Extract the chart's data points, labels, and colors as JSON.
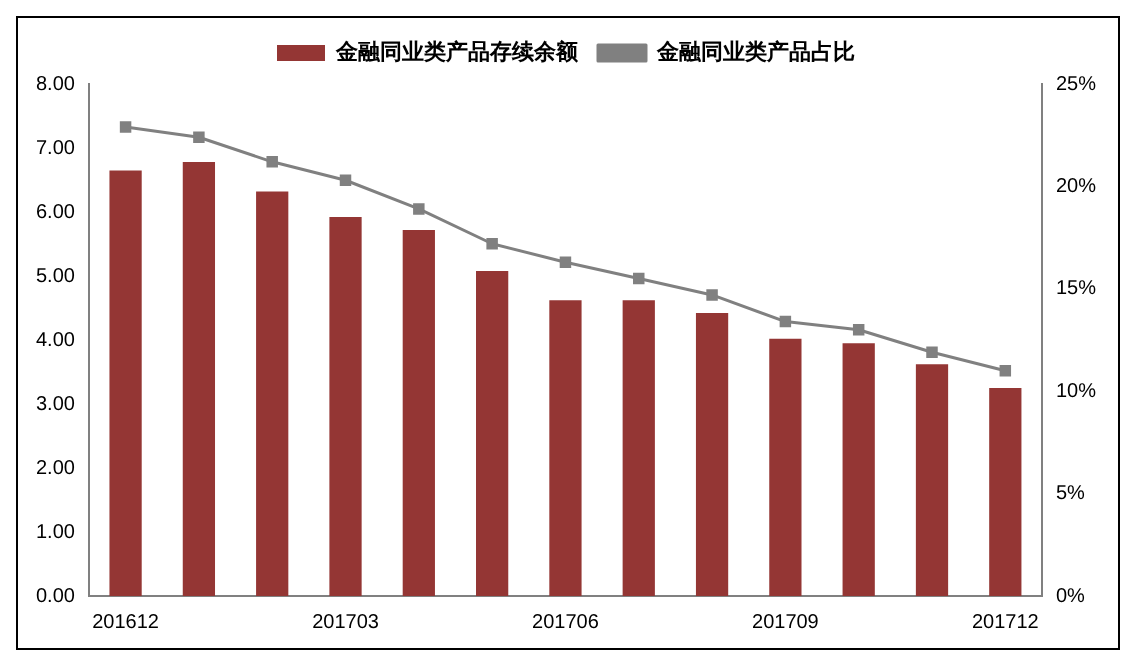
{
  "chart_data": {
    "type": "bar",
    "categories": [
      "201612",
      null,
      null,
      "201703",
      null,
      null,
      "201706",
      null,
      null,
      "201709",
      null,
      null,
      "201712"
    ],
    "series": [
      {
        "name": "金融同业类产品存续余额",
        "color": "#943634",
        "values": [
          6.65,
          6.78,
          6.32,
          5.92,
          5.72,
          5.08,
          4.62,
          4.62,
          4.42,
          4.02,
          3.95,
          3.62,
          3.25
        ]
      },
      {
        "name": "金融同业类产品占比",
        "type": "line",
        "axis": "y2",
        "color": "#808080",
        "marker": "square",
        "values": [
          22.9,
          22.4,
          21.2,
          20.3,
          18.9,
          17.2,
          16.3,
          15.5,
          14.7,
          13.4,
          13.0,
          11.9,
          11.0
        ]
      }
    ],
    "ylim": [
      0,
      8
    ],
    "yticks": [
      {
        "value": 0,
        "label": "0.00"
      },
      {
        "value": 1,
        "label": "1.00"
      },
      {
        "value": 2,
        "label": "2.00"
      },
      {
        "value": 3,
        "label": "3.00"
      },
      {
        "value": 4,
        "label": "4.00"
      },
      {
        "value": 5,
        "label": "5.00"
      },
      {
        "value": 6,
        "label": "6.00"
      },
      {
        "value": 7,
        "label": "7.00"
      },
      {
        "value": 8,
        "label": "8.00"
      }
    ],
    "y2lim": [
      0,
      25
    ],
    "y2ticks": [
      {
        "value": 0,
        "label": "0%"
      },
      {
        "value": 5,
        "label": "5%"
      },
      {
        "value": 10,
        "label": "10%"
      },
      {
        "value": 15,
        "label": "15%"
      },
      {
        "value": 20,
        "label": "20%"
      },
      {
        "value": 25,
        "label": "25%"
      }
    ],
    "grid": false,
    "legend": "top"
  }
}
